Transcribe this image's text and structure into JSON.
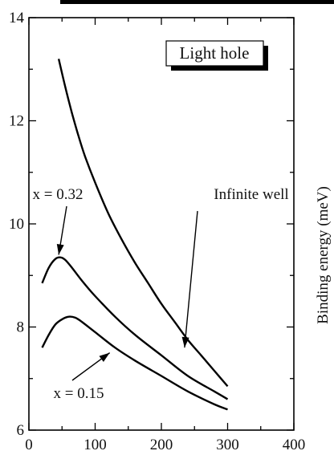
{
  "chart_data": {
    "type": "line",
    "title": "",
    "xlabel": "",
    "ylabel": "Binding energy (meV)",
    "xlim": [
      0,
      400
    ],
    "ylim": [
      6,
      14
    ],
    "x_ticks": [
      "0",
      "100",
      "200",
      "300",
      "400"
    ],
    "y_ticks": [
      "6",
      "8",
      "10",
      "12",
      "14"
    ],
    "grid": false,
    "legend_box": "Light hole",
    "series": [
      {
        "name": "Infinite well",
        "x": [
          45,
          55,
          65,
          75,
          85,
          100,
          120,
          140,
          160,
          180,
          200,
          220,
          240,
          260,
          280,
          300
        ],
        "y": [
          13.2,
          12.65,
          12.15,
          11.7,
          11.3,
          10.8,
          10.2,
          9.7,
          9.25,
          8.85,
          8.45,
          8.1,
          7.75,
          7.45,
          7.15,
          6.85
        ]
      },
      {
        "name": "x = 0.32",
        "x": [
          20,
          30,
          40,
          48,
          55,
          65,
          80,
          100,
          130,
          160,
          200,
          240,
          280,
          300
        ],
        "y": [
          8.85,
          9.15,
          9.32,
          9.35,
          9.3,
          9.15,
          8.9,
          8.6,
          8.2,
          7.85,
          7.45,
          7.05,
          6.75,
          6.6
        ]
      },
      {
        "name": "x = 0.15",
        "x": [
          20,
          30,
          40,
          50,
          60,
          70,
          80,
          100,
          130,
          160,
          200,
          240,
          280,
          300
        ],
        "y": [
          7.6,
          7.85,
          8.05,
          8.15,
          8.2,
          8.18,
          8.1,
          7.9,
          7.6,
          7.35,
          7.05,
          6.75,
          6.5,
          6.4
        ]
      }
    ],
    "annotations": [
      {
        "text": "Infinite well",
        "arrow_target": [
          235,
          7.6
        ]
      },
      {
        "text": "x = 0.32",
        "arrow_target": [
          45,
          9.4
        ]
      },
      {
        "text": "x = 0.15",
        "arrow_target": [
          122,
          7.5
        ]
      }
    ]
  }
}
